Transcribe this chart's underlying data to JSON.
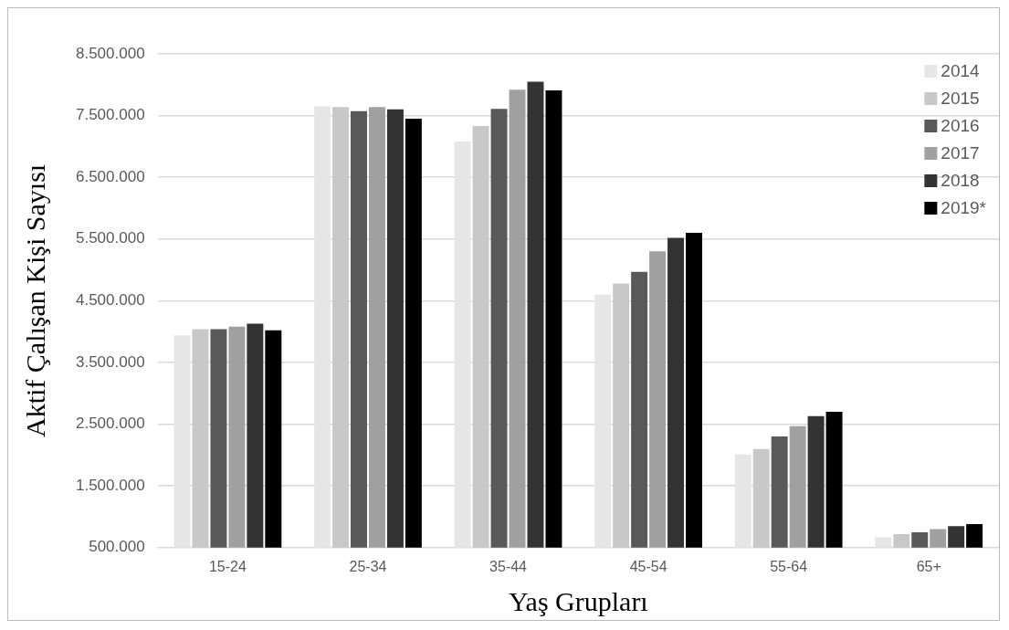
{
  "chart_data": {
    "type": "bar",
    "xlabel": "Yaş Grupları",
    "ylabel": "Aktif Çalışan Kişi Sayısı",
    "categories": [
      "15-24",
      "25-34",
      "35-44",
      "45-54",
      "55-64",
      "65+"
    ],
    "series": [
      {
        "name": "2014",
        "color": "#e6e6e6",
        "values": [
          3940000,
          7650000,
          7080000,
          4600000,
          2010000,
          670000
        ]
      },
      {
        "name": "2015",
        "color": "#c8c8c8",
        "values": [
          4040000,
          7640000,
          7330000,
          4780000,
          2100000,
          720000
        ]
      },
      {
        "name": "2016",
        "color": "#595959",
        "values": [
          4040000,
          7570000,
          7610000,
          4970000,
          2300000,
          750000
        ]
      },
      {
        "name": "2017",
        "color": "#a0a0a0",
        "values": [
          4080000,
          7640000,
          7920000,
          5300000,
          2470000,
          800000
        ]
      },
      {
        "name": "2018",
        "color": "#333333",
        "values": [
          4130000,
          7600000,
          8050000,
          5520000,
          2630000,
          850000
        ]
      },
      {
        "name": "2019*",
        "color": "#000000",
        "values": [
          4020000,
          7450000,
          7910000,
          5600000,
          2700000,
          880000
        ]
      }
    ],
    "ylim": [
      500000,
      8500000
    ],
    "yticks": [
      {
        "value": 500000,
        "label": "500.000"
      },
      {
        "value": 1500000,
        "label": "1.500.000"
      },
      {
        "value": 2500000,
        "label": "2.500.000"
      },
      {
        "value": 3500000,
        "label": "3.500.000"
      },
      {
        "value": 4500000,
        "label": "4.500.000"
      },
      {
        "value": 5500000,
        "label": "5.500.000"
      },
      {
        "value": 6500000,
        "label": "6.500.000"
      },
      {
        "value": 7500000,
        "label": "7.500.000"
      },
      {
        "value": 8500000,
        "label": "8.500.000"
      }
    ],
    "grid": "y",
    "legend": "top right"
  }
}
